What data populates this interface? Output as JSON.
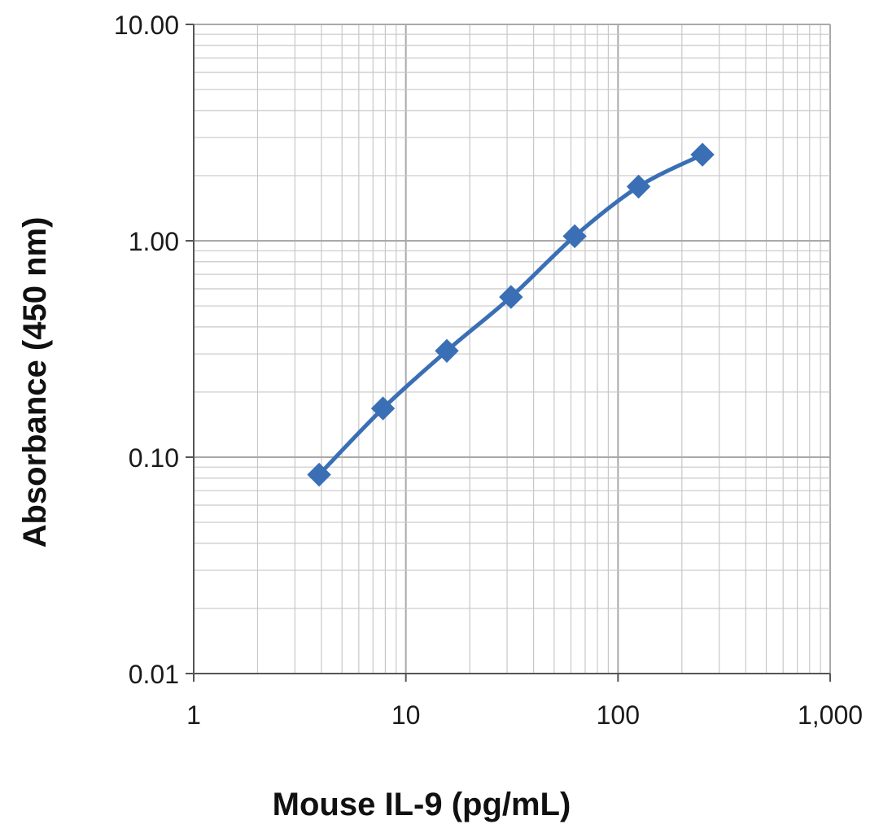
{
  "chart_data": {
    "type": "line",
    "title": "",
    "xlabel": "Mouse IL-9 (pg/mL)",
    "ylabel": "Absorbance  (450 nm)",
    "x_scale": "log",
    "y_scale": "log",
    "xlim": [
      1,
      1000
    ],
    "ylim": [
      0.01,
      10
    ],
    "x_ticks": [
      1,
      10,
      100,
      1000
    ],
    "x_tick_labels": [
      "1",
      "10",
      "100",
      "1,000"
    ],
    "y_ticks": [
      0.01,
      0.1,
      1,
      10
    ],
    "y_tick_labels": [
      "0.01",
      "0.10",
      "1.00",
      "10.00"
    ],
    "grid": true,
    "legend": "none",
    "series_color": "#3a6fb5",
    "grid_color": "#c8c8c8",
    "grid_major_color": "#a9a9a9",
    "marker": "diamond",
    "series": [
      {
        "x": [
          3.9,
          7.8,
          15.6,
          31.3,
          62.5,
          125,
          250
        ],
        "y": [
          0.083,
          0.168,
          0.31,
          0.55,
          1.05,
          1.78,
          2.5
        ]
      }
    ]
  }
}
